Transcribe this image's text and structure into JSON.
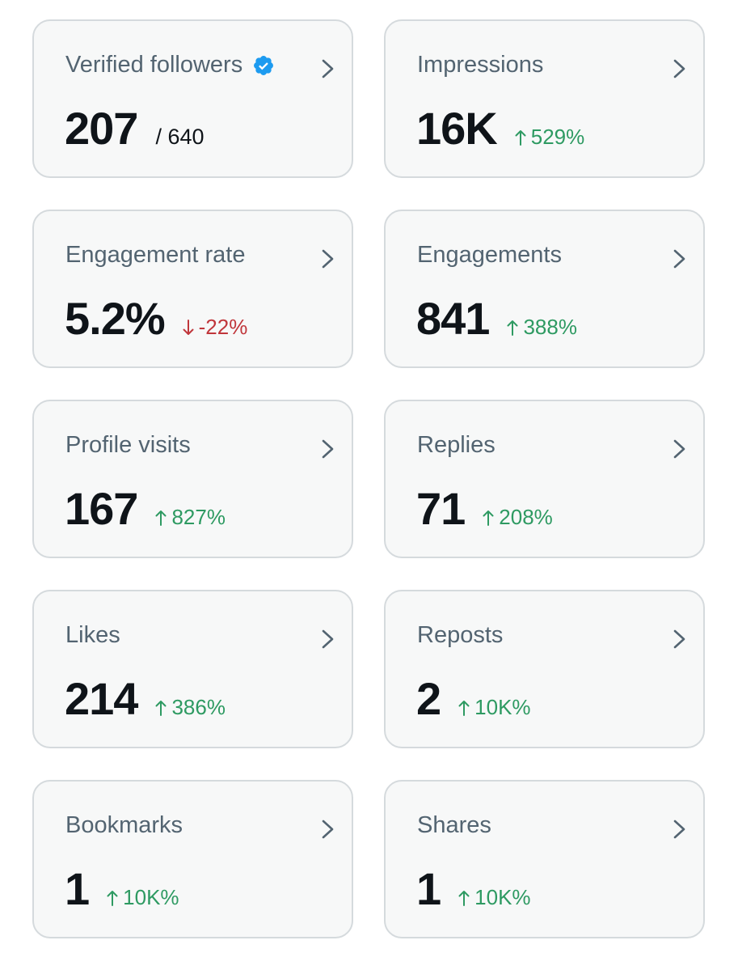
{
  "colors": {
    "card_background": "#f7f8f8",
    "card_border": "#d5dadd",
    "title_text": "#536471",
    "value_text": "#0f1419",
    "positive_change": "#2e9a62",
    "negative_change": "#c0363b",
    "verified_badge": "#1d9bf0"
  },
  "cards": [
    {
      "title": "Verified followers",
      "icon": "verified-badge-icon",
      "value": "207",
      "total": "/ 640"
    },
    {
      "title": "Impressions",
      "value": "16K",
      "change": "529%",
      "direction": "up"
    },
    {
      "title": "Engagement rate",
      "value": "5.2%",
      "change": "-22%",
      "direction": "down"
    },
    {
      "title": "Engagements",
      "value": "841",
      "change": "388%",
      "direction": "up"
    },
    {
      "title": "Profile visits",
      "value": "167",
      "change": "827%",
      "direction": "up"
    },
    {
      "title": "Replies",
      "value": "71",
      "change": "208%",
      "direction": "up"
    },
    {
      "title": "Likes",
      "value": "214",
      "change": "386%",
      "direction": "up"
    },
    {
      "title": "Reposts",
      "value": "2",
      "change": "10K%",
      "direction": "up"
    },
    {
      "title": "Bookmarks",
      "value": "1",
      "change": "10K%",
      "direction": "up"
    },
    {
      "title": "Shares",
      "value": "1",
      "change": "10K%",
      "direction": "up"
    }
  ]
}
